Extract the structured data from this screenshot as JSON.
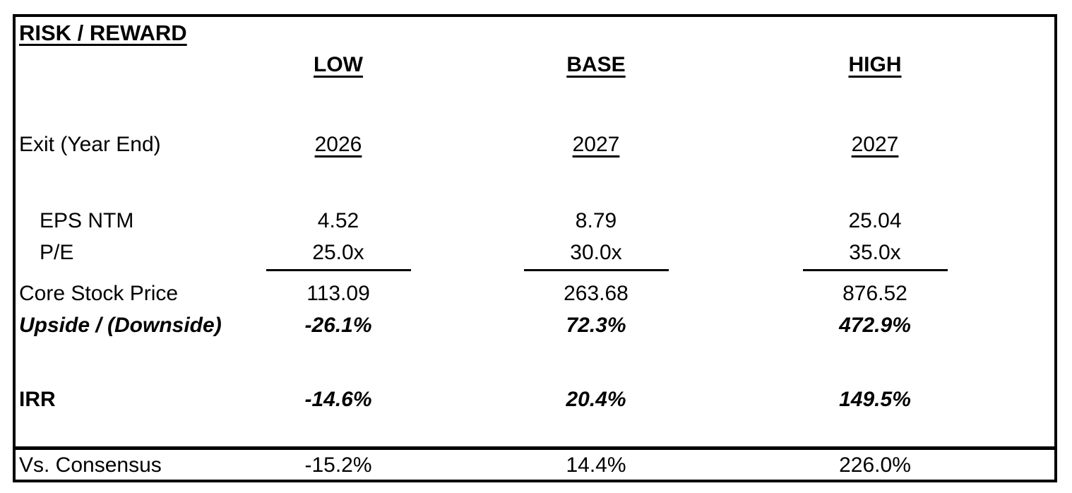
{
  "page": {
    "background_color": "#ffffff",
    "text_color": "#000000",
    "border_color": "#000000"
  },
  "table": {
    "title": "RISK / REWARD",
    "columns": [
      "LOW",
      "BASE",
      "HIGH"
    ],
    "rows": [
      {
        "id": "exit-year-end",
        "label": "Exit (Year End)",
        "values": [
          "2026",
          "2027",
          "2027"
        ]
      },
      {
        "id": "eps-ntm",
        "label": "EPS NTM",
        "values": [
          "4.52",
          "8.79",
          "25.04"
        ]
      },
      {
        "id": "pe",
        "label": "P/E",
        "values": [
          "25.0x",
          "30.0x",
          "35.0x"
        ]
      },
      {
        "id": "core-stock-price",
        "label": "Core Stock Price",
        "values": [
          "113.09",
          "263.68",
          "876.52"
        ]
      },
      {
        "id": "upside-downside",
        "label": "Upside / (Downside)",
        "values": [
          "-26.1%",
          "72.3%",
          "472.9%"
        ]
      },
      {
        "id": "irr",
        "label": "IRR",
        "values": [
          "-14.6%",
          "20.4%",
          "149.5%"
        ]
      },
      {
        "id": "vs-consensus",
        "label": "Vs. Consensus",
        "values": [
          "-15.2%",
          "14.4%",
          "226.0%"
        ]
      }
    ]
  }
}
